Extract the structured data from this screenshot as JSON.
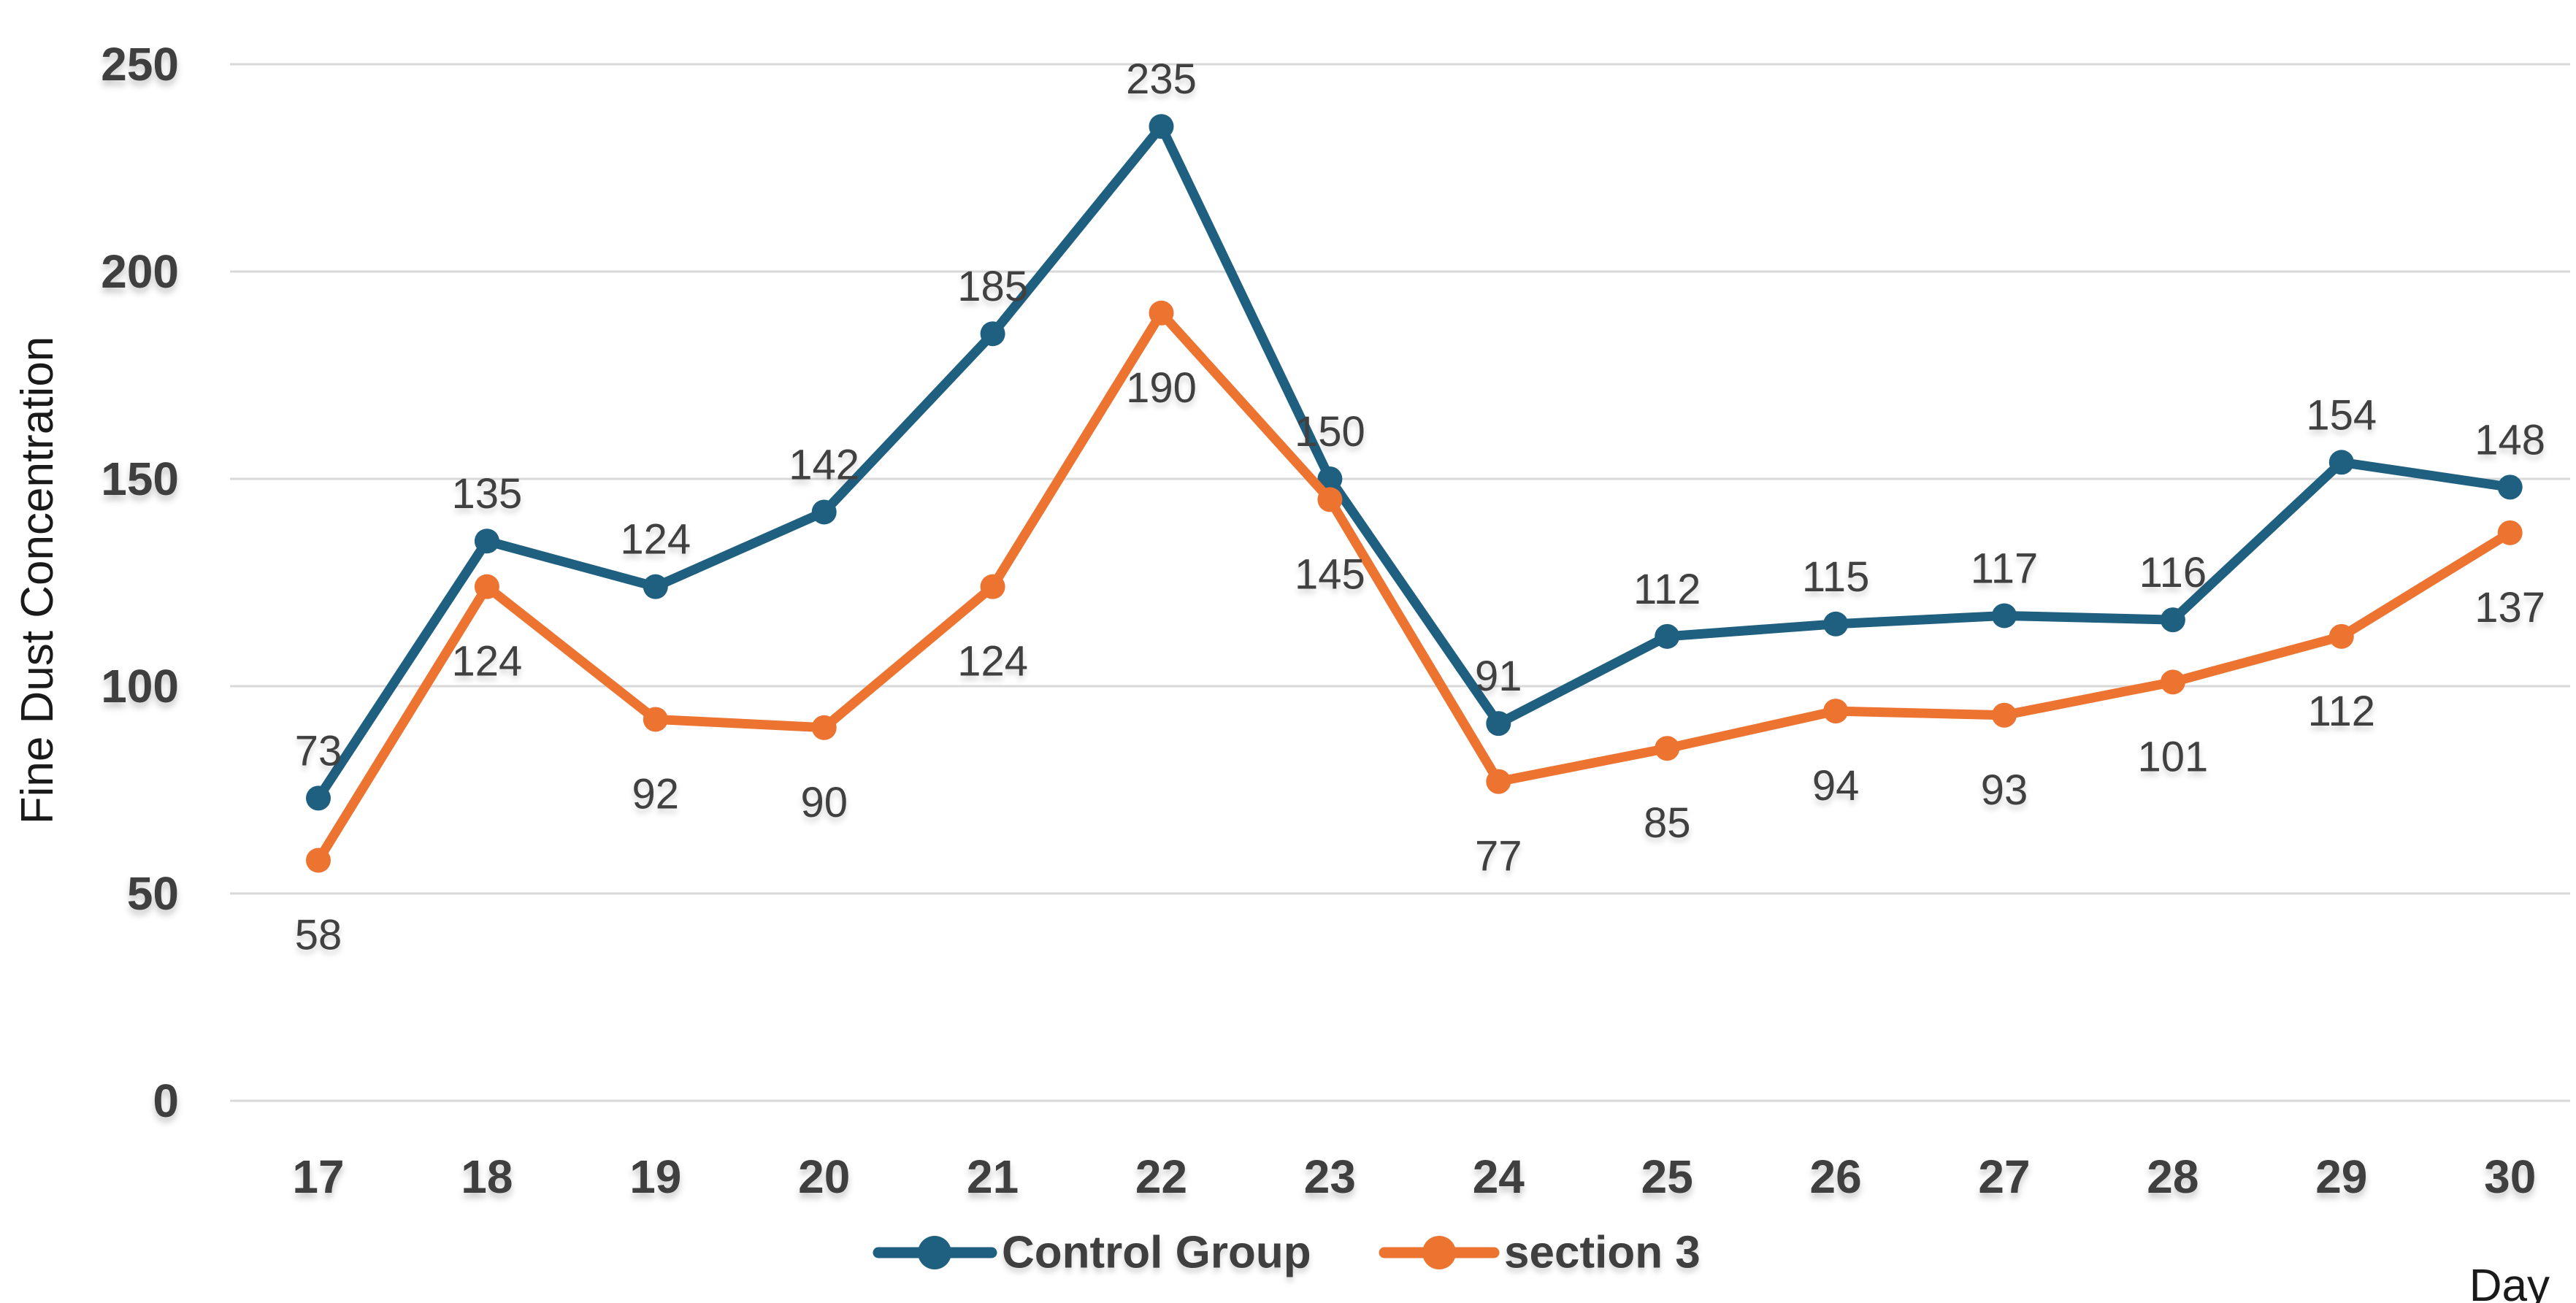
{
  "chart_data": {
    "type": "line",
    "title": "",
    "x": [
      "17",
      "18",
      "19",
      "20",
      "21",
      "22",
      "23",
      "24",
      "25",
      "26",
      "27",
      "28",
      "29",
      "30"
    ],
    "xlabel": "Day",
    "ylabel": "Fine Dust Concentration",
    "ylim": [
      0,
      250
    ],
    "yticks": [
      0,
      50,
      100,
      150,
      200,
      250
    ],
    "grid": "horizontal-only",
    "legend_position": "bottom-center",
    "series": [
      {
        "name": "Control Group",
        "color": "#1F5F80",
        "marker": "circle",
        "label_position": "above",
        "values": [
          73,
          135,
          124,
          142,
          185,
          235,
          150,
          91,
          112,
          115,
          117,
          116,
          154,
          148
        ]
      },
      {
        "name": "section 3",
        "color": "#ED7331",
        "marker": "circle",
        "label_position": "below",
        "values": [
          58,
          124,
          92,
          90,
          124,
          190,
          145,
          77,
          85,
          94,
          93,
          101,
          112,
          137
        ]
      }
    ]
  },
  "colors": {
    "background": "#FFFFFF",
    "gridline": "#D9D9D9",
    "tick_label": "#3F3F3F",
    "data_label": "#404040",
    "axis_title": "#1A1A1A",
    "legend_label": "#3F3F3F"
  }
}
